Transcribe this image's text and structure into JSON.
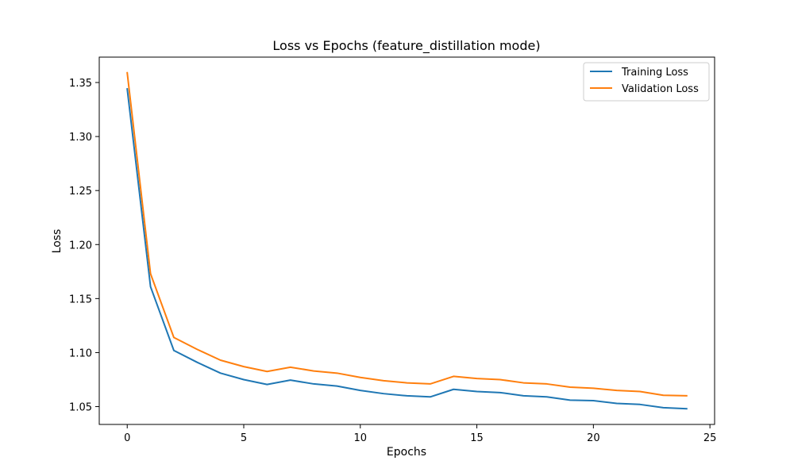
{
  "chart_data": {
    "type": "line",
    "title": "Loss vs Epochs (feature_distillation mode)",
    "xlabel": "Epochs",
    "ylabel": "Loss",
    "xlim": [
      -1.2,
      25.2
    ],
    "ylim": [
      1.0335,
      1.3735
    ],
    "xticks": [
      0,
      5,
      10,
      15,
      20,
      25
    ],
    "yticks": [
      1.05,
      1.1,
      1.15,
      1.2,
      1.25,
      1.3,
      1.35
    ],
    "ytick_labels": [
      "1.05",
      "1.10",
      "1.15",
      "1.20",
      "1.25",
      "1.30",
      "1.35"
    ],
    "xtick_labels": [
      "0",
      "5",
      "10",
      "15",
      "20",
      "25"
    ],
    "grid": false,
    "legend_position": "top-right",
    "x": [
      0,
      1,
      2,
      3,
      4,
      5,
      6,
      7,
      8,
      9,
      10,
      11,
      12,
      13,
      14,
      15,
      16,
      17,
      18,
      19,
      20,
      21,
      22,
      23,
      24
    ],
    "series": [
      {
        "name": "Training Loss",
        "color": "#1f77b4",
        "values": [
          1.344,
          1.161,
          1.102,
          1.091,
          1.081,
          1.075,
          1.0705,
          1.0745,
          1.071,
          1.069,
          1.065,
          1.062,
          1.06,
          1.059,
          1.066,
          1.064,
          1.063,
          1.06,
          1.059,
          1.056,
          1.0555,
          1.053,
          1.052,
          1.049,
          1.048
        ]
      },
      {
        "name": "Validation Loss",
        "color": "#ff7f0e",
        "values": [
          1.359,
          1.173,
          1.114,
          1.103,
          1.093,
          1.087,
          1.0825,
          1.0865,
          1.083,
          1.081,
          1.077,
          1.074,
          1.072,
          1.071,
          1.078,
          1.076,
          1.075,
          1.072,
          1.071,
          1.068,
          1.067,
          1.065,
          1.064,
          1.0605,
          1.06
        ]
      }
    ]
  }
}
